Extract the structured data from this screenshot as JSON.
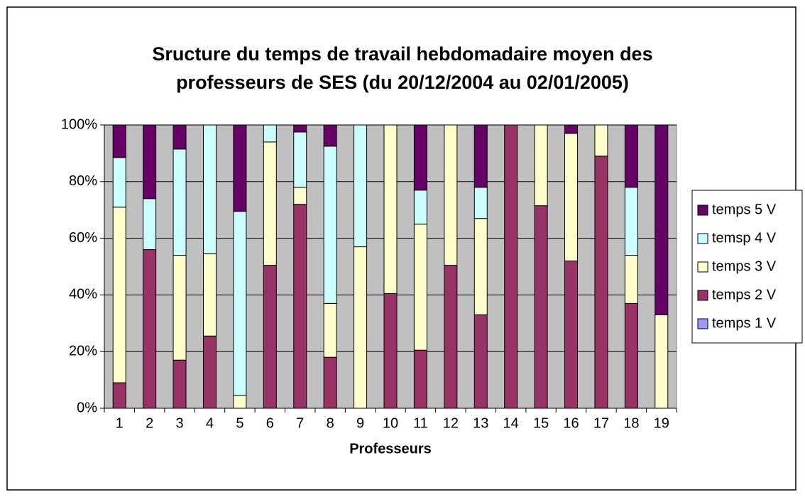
{
  "chart_data": {
    "type": "stacked_bar",
    "title": [
      "Sructure du temps de travail hebdomadaire moyen des",
      "professeurs de SES (du 20/12/2004 au 02/01/2005)"
    ],
    "x_label": "Professeurs",
    "categories": [
      "1",
      "2",
      "3",
      "4",
      "5",
      "6",
      "7",
      "8",
      "9",
      "10",
      "11",
      "12",
      "13",
      "14",
      "15",
      "16",
      "17",
      "18",
      "19"
    ],
    "series": [
      {
        "name": "temps 1 V",
        "color": "#9999ff",
        "values": [
          0,
          0,
          0,
          0,
          0,
          0,
          0,
          0,
          0,
          0,
          0,
          0,
          0,
          0,
          0,
          0,
          0,
          0,
          0
        ]
      },
      {
        "name": "temps 2 V",
        "color": "#993366",
        "values": [
          9,
          56,
          17,
          25.5,
          0,
          50.5,
          72,
          18,
          0,
          40.5,
          20.5,
          50.5,
          33,
          100,
          71.5,
          52,
          89,
          37,
          0
        ]
      },
      {
        "name": "temps 3 V",
        "color": "#ffffcc",
        "values": [
          62,
          0,
          37,
          29,
          4.5,
          43.5,
          6,
          19,
          57,
          59.5,
          44.5,
          49.5,
          34,
          0,
          28.5,
          45,
          11,
          17,
          33
        ]
      },
      {
        "name": "temsp 4 V",
        "color": "#ccffff",
        "values": [
          17.5,
          18,
          37.5,
          45.5,
          65,
          6,
          19.5,
          55.5,
          43,
          0,
          12,
          0,
          11,
          0,
          0,
          0,
          0,
          24,
          0
        ]
      },
      {
        "name": "temps 5 V",
        "color": "#660066",
        "values": [
          11.5,
          26,
          8.5,
          0,
          30.5,
          0,
          2.5,
          7.5,
          0,
          0,
          23,
          0,
          22,
          0,
          0,
          3,
          0,
          22,
          67
        ]
      }
    ],
    "ylim": [
      0,
      100
    ],
    "yticks": [
      {
        "value": 0,
        "label": "0%"
      },
      {
        "value": 20,
        "label": "20%"
      },
      {
        "value": 40,
        "label": "40%"
      },
      {
        "value": 60,
        "label": "60%"
      },
      {
        "value": 80,
        "label": "80%"
      },
      {
        "value": 100,
        "label": "100%"
      }
    ],
    "grid": true,
    "plot_background": "#c0c0c0",
    "legend": "right"
  }
}
